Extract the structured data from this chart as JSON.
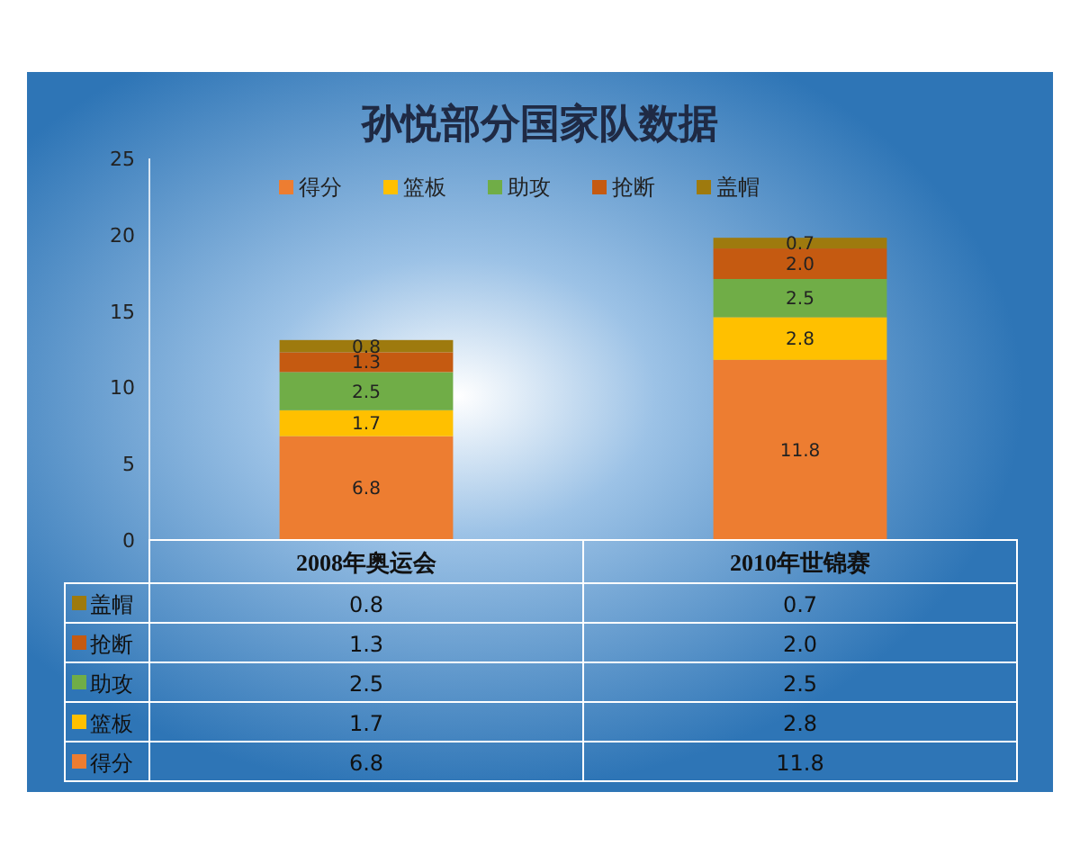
{
  "chart_data": {
    "type": "bar",
    "title": "孙悦部分国家队数据",
    "categories": [
      "2008年奥运会",
      "2010年世锦赛"
    ],
    "stacked": true,
    "ylim": [
      0,
      25
    ],
    "yticks": [
      0,
      5,
      10,
      15,
      20,
      25
    ],
    "grid": false,
    "legend": "top",
    "series": [
      {
        "name": "得分",
        "color": "#ed7d31",
        "values": [
          6.8,
          11.8
        ],
        "value_labels": [
          "6.8",
          "11.8"
        ]
      },
      {
        "name": "篮板",
        "color": "#ffc000",
        "values": [
          1.7,
          2.8
        ],
        "value_labels": [
          "1.7",
          "2.8"
        ]
      },
      {
        "name": "助攻",
        "color": "#70ad47",
        "values": [
          2.5,
          2.5
        ],
        "value_labels": [
          "2.5",
          "2.5"
        ]
      },
      {
        "name": "抢断",
        "color": "#c55a11",
        "values": [
          1.3,
          2.0
        ],
        "value_labels": [
          "1.3",
          "2.0"
        ]
      },
      {
        "name": "盖帽",
        "color": "#9e7a0e",
        "values": [
          0.8,
          0.7
        ],
        "value_labels": [
          "0.8",
          "0.7"
        ]
      }
    ]
  }
}
